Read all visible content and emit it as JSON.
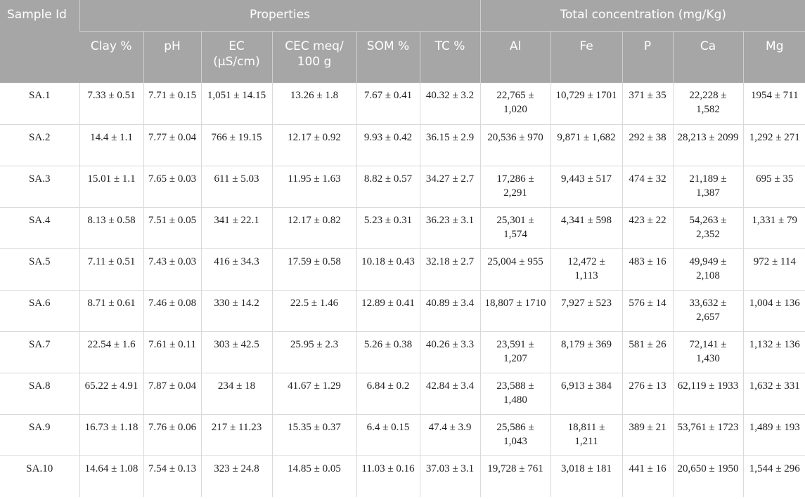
{
  "header": {
    "sample_id": "Sample Id",
    "properties": "Properties",
    "total_concentration": "Total concentration (mg/Kg)",
    "columns": [
      "Clay %",
      "pH",
      "EC (µS/cm)",
      "CEC meq/ 100 g",
      "SOM %",
      "TC %",
      "Al",
      "Fe",
      "P",
      "Ca",
      "Mg"
    ]
  },
  "rows": [
    [
      "SA.1",
      "7.33 ± 0.51",
      "7.71 ± 0.15",
      "1,051 ± 14.15",
      "13.26 ± 1.8",
      "7.67 ± 0.41",
      "40.32 ± 3.2",
      "22,765 ± 1,020",
      "10,729 ± 1701",
      "371 ± 35",
      "22,228 ± 1,582",
      "1954 ± 711"
    ],
    [
      "SA.2",
      "14.4 ± 1.1",
      "7.77 ± 0.04",
      "766 ± 19.15",
      "12.17 ± 0.92",
      "9.93 ± 0.42",
      "36.15 ± 2.9",
      "20,536 ± 970",
      "9,871 ± 1,682",
      "292 ± 38",
      "28,213 ± 2099",
      "1,292 ± 271"
    ],
    [
      "SA.3",
      "15.01 ± 1.1",
      "7.65 ± 0.03",
      "611 ± 5.03",
      "11.95 ± 1.63",
      "8.82 ± 0.57",
      "34.27 ± 2.7",
      "17,286 ± 2,291",
      "9,443 ± 517",
      "474 ± 32",
      "21,189 ± 1,387",
      "695 ± 35"
    ],
    [
      "SA.4",
      "8.13 ± 0.58",
      "7.51 ± 0.05",
      "341 ± 22.1",
      "12.17 ± 0.82",
      "5.23 ± 0.31",
      "36.23 ± 3.1",
      "25,301 ± 1,574",
      "4,341 ± 598",
      "423 ± 22",
      "54,263 ± 2,352",
      "1,331 ± 79"
    ],
    [
      "SA.5",
      "7.11 ± 0.51",
      "7.43 ± 0.03",
      "416 ± 34.3",
      "17.59 ± 0.58",
      "10.18 ± 0.43",
      "32.18 ± 2.7",
      "25,004 ± 955",
      "12,472 ± 1,113",
      "483 ± 16",
      "49,949 ± 2,108",
      "972 ± 114"
    ],
    [
      "SA.6",
      "8.71 ± 0.61",
      "7.46 ± 0.08",
      "330 ± 14.2",
      "22.5 ± 1.46",
      "12.89 ± 0.41",
      "40.89 ± 3.4",
      "18,807 ± 1710",
      "7,927 ± 523",
      "576 ± 14",
      "33,632 ± 2,657",
      "1,004 ± 136"
    ],
    [
      "SA.7",
      "22.54 ± 1.6",
      "7.61 ± 0.11",
      "303 ± 42.5",
      "25.95 ± 2.3",
      "5.26 ± 0.38",
      "40.26 ± 3.3",
      "23,591 ± 1,207",
      "8,179 ± 369",
      "581 ± 26",
      "72,141 ± 1,430",
      "1,132 ± 136"
    ],
    [
      "SA.8",
      "65.22 ± 4.91",
      "7.87 ± 0.04",
      "234 ± 18",
      "41.67 ± 1.29",
      "6.84 ± 0.2",
      "42.84 ± 3.4",
      "23,588 ± 1,480",
      "6,913 ± 384",
      "276 ± 13",
      "62,119 ± 1933",
      "1,632 ± 331"
    ],
    [
      "SA.9",
      "16.73 ± 1.18",
      "7.76 ± 0.06",
      "217 ± 11.23",
      "15.35 ± 0.37",
      "6.4 ± 0.15",
      "47.4 ± 3.9",
      "25,586 ± 1,043",
      "18,811 ± 1,211",
      "389 ± 21",
      "53,761 ± 1723",
      "1,489 ± 193"
    ],
    [
      "SA.10",
      "14.64 ± 1.08",
      "7.54 ± 0.13",
      "323 ± 24.8",
      "14.85 ± 0.05",
      "11.03 ± 0.16",
      "37.03 ± 3.1",
      "19,728 ± 761",
      "3,018 ± 181",
      "441 ± 16",
      "20,650 ± 1950",
      "1,544 ± 296"
    ]
  ]
}
